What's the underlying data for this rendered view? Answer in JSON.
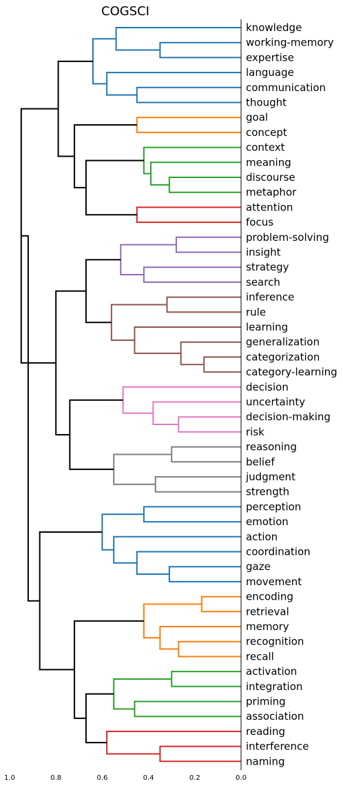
{
  "chart_data": {
    "type": "dendrogram",
    "title": "COGSCI",
    "orientation": "left",
    "x_ticks": [
      "1.0",
      "0.8",
      "0.6",
      "0.4",
      "0.2",
      "0.0"
    ],
    "xlim": [
      1.0,
      0.0
    ],
    "grid": false,
    "leaves": [
      "knowledge",
      "working-memory",
      "expertise",
      "language",
      "communication",
      "thought",
      "goal",
      "concept",
      "context",
      "meaning",
      "discourse",
      "metaphor",
      "attention",
      "focus",
      "problem-solving",
      "insight",
      "strategy",
      "search",
      "inference",
      "rule",
      "learning",
      "generalization",
      "categorization",
      "category-learning",
      "decision",
      "uncertainty",
      "decision-making",
      "risk",
      "reasoning",
      "belief",
      "judgment",
      "strength",
      "perception",
      "emotion",
      "action",
      "coordination",
      "gaze",
      "movement",
      "encoding",
      "retrieval",
      "memory",
      "recognition",
      "recall",
      "activation",
      "integration",
      "priming",
      "association",
      "reading",
      "interference",
      "naming"
    ],
    "colors": {
      "blue": "#1f77b4",
      "orange": "#ff7f0e",
      "green": "#2ca02c",
      "red": "#d62728",
      "purple": "#9467bd",
      "brown": "#8c564b",
      "pink": "#e377c2",
      "gray": "#7f7f7f",
      "above_threshold": "#000000"
    },
    "merges": [
      {
        "a": "L1",
        "b": "L2",
        "h": 0.35,
        "c": "blue"
      },
      {
        "a": "L0",
        "b": "M0",
        "h": 0.54,
        "c": "blue"
      },
      {
        "a": "L4",
        "b": "L5",
        "h": 0.45,
        "c": "blue"
      },
      {
        "a": "L3",
        "b": "M2",
        "h": 0.58,
        "c": "blue"
      },
      {
        "a": "M1",
        "b": "M3",
        "h": 0.64,
        "c": "blue"
      },
      {
        "a": "L6",
        "b": "L7",
        "h": 0.45,
        "c": "orange"
      },
      {
        "a": "L10",
        "b": "L11",
        "h": 0.31,
        "c": "green"
      },
      {
        "a": "L9",
        "b": "M6",
        "h": 0.39,
        "c": "green"
      },
      {
        "a": "L8",
        "b": "M7",
        "h": 0.42,
        "c": "green"
      },
      {
        "a": "L12",
        "b": "L13",
        "h": 0.45,
        "c": "red"
      },
      {
        "a": "M8",
        "b": "M9",
        "h": 0.67,
        "c": "above_threshold"
      },
      {
        "a": "M5",
        "b": "M10",
        "h": 0.72,
        "c": "above_threshold"
      },
      {
        "a": "M4",
        "b": "M11",
        "h": 0.79,
        "c": "above_threshold"
      },
      {
        "a": "L14",
        "b": "L15",
        "h": 0.28,
        "c": "purple"
      },
      {
        "a": "L16",
        "b": "L17",
        "h": 0.42,
        "c": "purple"
      },
      {
        "a": "M13",
        "b": "M14",
        "h": 0.52,
        "c": "purple"
      },
      {
        "a": "L18",
        "b": "L19",
        "h": 0.32,
        "c": "brown"
      },
      {
        "a": "L22",
        "b": "L23",
        "h": 0.16,
        "c": "brown"
      },
      {
        "a": "L21",
        "b": "M17",
        "h": 0.26,
        "c": "brown"
      },
      {
        "a": "L20",
        "b": "M18",
        "h": 0.46,
        "c": "brown"
      },
      {
        "a": "M16",
        "b": "M19",
        "h": 0.56,
        "c": "brown"
      },
      {
        "a": "M15",
        "b": "M20",
        "h": 0.67,
        "c": "above_threshold"
      },
      {
        "a": "L26",
        "b": "L27",
        "h": 0.27,
        "c": "pink"
      },
      {
        "a": "L25",
        "b": "M22",
        "h": 0.38,
        "c": "pink"
      },
      {
        "a": "L24",
        "b": "M23",
        "h": 0.51,
        "c": "pink"
      },
      {
        "a": "L28",
        "b": "L29",
        "h": 0.3,
        "c": "gray"
      },
      {
        "a": "L30",
        "b": "L31",
        "h": 0.37,
        "c": "gray"
      },
      {
        "a": "M25",
        "b": "M26",
        "h": 0.55,
        "c": "gray"
      },
      {
        "a": "M24",
        "b": "M27",
        "h": 0.74,
        "c": "above_threshold"
      },
      {
        "a": "M21",
        "b": "M28",
        "h": 0.8,
        "c": "above_threshold"
      },
      {
        "a": "M12",
        "b": "M29",
        "h": 0.95,
        "c": "above_threshold"
      },
      {
        "a": "L32",
        "b": "L33",
        "h": 0.42,
        "c": "blue"
      },
      {
        "a": "L36",
        "b": "L37",
        "h": 0.31,
        "c": "blue"
      },
      {
        "a": "L35",
        "b": "M32",
        "h": 0.45,
        "c": "blue"
      },
      {
        "a": "L34",
        "b": "M33",
        "h": 0.55,
        "c": "blue"
      },
      {
        "a": "M31",
        "b": "M34",
        "h": 0.6,
        "c": "blue"
      },
      {
        "a": "L38",
        "b": "L39",
        "h": 0.17,
        "c": "orange"
      },
      {
        "a": "L41",
        "b": "L42",
        "h": 0.27,
        "c": "orange"
      },
      {
        "a": "L40",
        "b": "M37",
        "h": 0.35,
        "c": "orange"
      },
      {
        "a": "M36",
        "b": "M38",
        "h": 0.42,
        "c": "orange"
      },
      {
        "a": "L43",
        "b": "L44",
        "h": 0.3,
        "c": "green"
      },
      {
        "a": "L45",
        "b": "L46",
        "h": 0.46,
        "c": "green"
      },
      {
        "a": "M40",
        "b": "M41",
        "h": 0.55,
        "c": "green"
      },
      {
        "a": "L48",
        "b": "L49",
        "h": 0.35,
        "c": "red"
      },
      {
        "a": "L47",
        "b": "M43",
        "h": 0.58,
        "c": "red"
      },
      {
        "a": "M42",
        "b": "M44",
        "h": 0.67,
        "c": "above_threshold"
      },
      {
        "a": "M39",
        "b": "M45",
        "h": 0.72,
        "c": "above_threshold"
      },
      {
        "a": "M35",
        "b": "M46",
        "h": 0.87,
        "c": "above_threshold"
      },
      {
        "a": "M30",
        "b": "M47",
        "h": 0.92,
        "c": "above_threshold"
      }
    ]
  }
}
